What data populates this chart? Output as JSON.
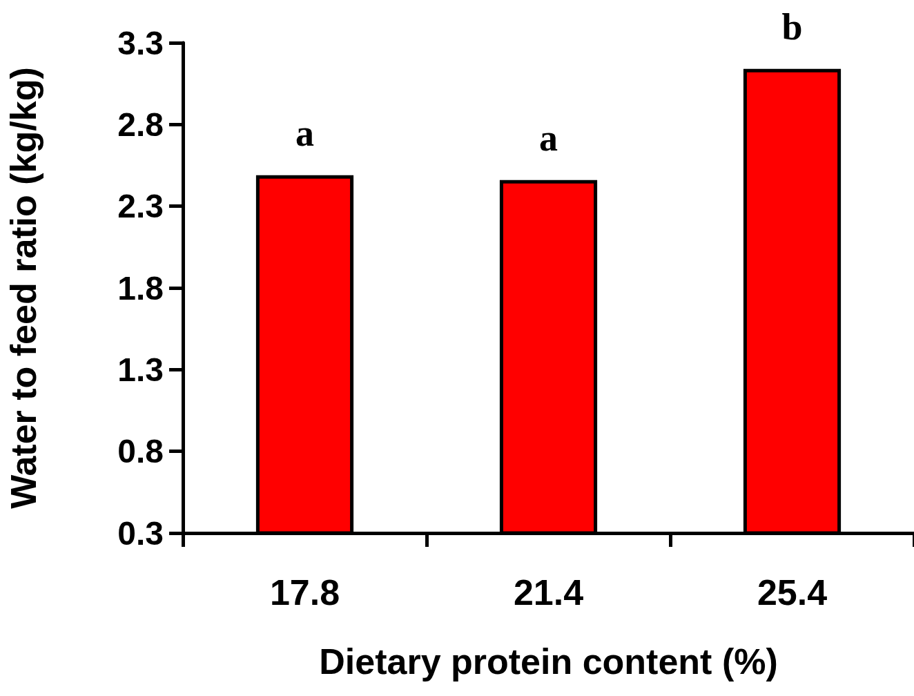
{
  "chart_data": {
    "type": "bar",
    "xlabel": "Dietary protein content (%)",
    "ylabel": "Water to feed ratio (kg/kg)",
    "categories": [
      "17.8",
      "21.4",
      "25.4"
    ],
    "values": [
      2.49,
      2.46,
      3.14
    ],
    "color": "#ff0000",
    "ylim": [
      0.3,
      3.3
    ],
    "yticks": [
      0.3,
      0.8,
      1.3,
      1.8,
      2.3,
      2.8,
      3.3
    ],
    "annotations": [
      "a",
      "a",
      "b"
    ]
  }
}
